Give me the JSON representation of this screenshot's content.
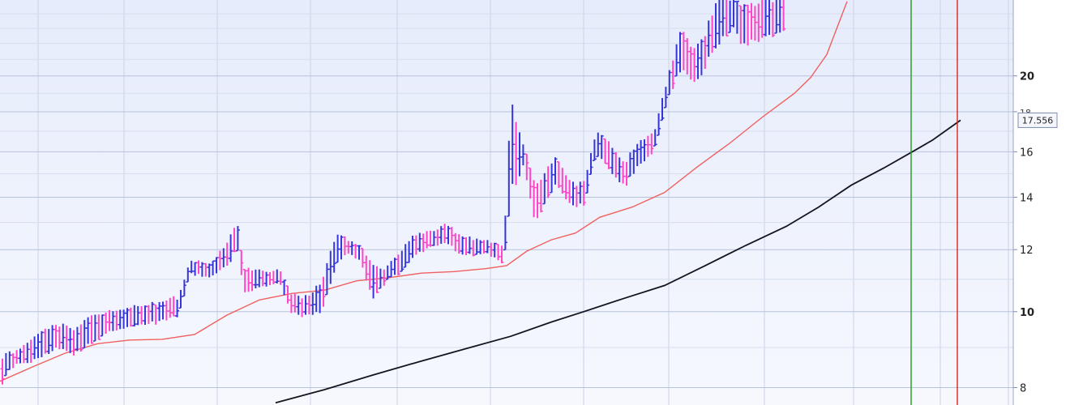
{
  "chart_data": {
    "type": "ohlc",
    "scale": "log",
    "ylim": [
      7.6,
      25.0
    ],
    "grid": true,
    "yticks": [
      {
        "value": 8,
        "label": "8",
        "major": false
      },
      {
        "value": 10,
        "label": "10",
        "major": true
      },
      {
        "value": 12,
        "label": "12",
        "major": false
      },
      {
        "value": 14,
        "label": "14",
        "major": false
      },
      {
        "value": 16,
        "label": "16",
        "major": false
      },
      {
        "value": 18,
        "label": "18",
        "major": false
      },
      {
        "value": 20,
        "label": "20",
        "major": true
      }
    ],
    "last_price_label": "17.556",
    "last_price_value": 17.556,
    "colors": {
      "up_bar": "#3535d8",
      "down_bar": "#ff44c8",
      "fast_ma": "#f06060",
      "slow_ma": "#151520",
      "marker_green": "#1f9a1f",
      "marker_red": "#e02020",
      "bg_top": "#e6ecfb",
      "bg_bottom": "#f6f8fe",
      "grid": "#c9d2e6"
    },
    "bar_anchors": [
      [
        0,
        8.1,
        8.7
      ],
      [
        20,
        8.6,
        8.9
      ],
      [
        45,
        8.7,
        9.3
      ],
      [
        66,
        9.0,
        9.6
      ],
      [
        90,
        8.9,
        9.5
      ],
      [
        110,
        9.1,
        9.8
      ],
      [
        135,
        9.5,
        10.0
      ],
      [
        165,
        9.6,
        10.1
      ],
      [
        190,
        9.7,
        10.2
      ],
      [
        220,
        9.9,
        10.4
      ],
      [
        235,
        11.2,
        11.6
      ],
      [
        260,
        11.1,
        11.5
      ],
      [
        285,
        11.6,
        12.4
      ],
      [
        292,
        12.4,
        13.2
      ],
      [
        300,
        10.6,
        11.3
      ],
      [
        330,
        10.8,
        11.2
      ],
      [
        345,
        10.9,
        11.3
      ],
      [
        360,
        10.0,
        10.5
      ],
      [
        380,
        9.9,
        10.4
      ],
      [
        398,
        10.1,
        10.9
      ],
      [
        415,
        11.6,
        12.6
      ],
      [
        430,
        11.9,
        12.3
      ],
      [
        445,
        11.6,
        12.1
      ],
      [
        460,
        10.3,
        11.3
      ],
      [
        475,
        10.9,
        11.3
      ],
      [
        490,
        11.2,
        11.8
      ],
      [
        510,
        11.8,
        12.5
      ],
      [
        530,
        12.1,
        12.6
      ],
      [
        550,
        12.3,
        12.9
      ],
      [
        570,
        11.8,
        12.4
      ],
      [
        600,
        11.9,
        12.3
      ],
      [
        622,
        11.5,
        12.1
      ],
      [
        630,
        14.3,
        18.2
      ],
      [
        645,
        15.5,
        16.4
      ],
      [
        660,
        13.0,
        14.3
      ],
      [
        685,
        14.6,
        15.7
      ],
      [
        705,
        13.7,
        14.5
      ],
      [
        722,
        13.7,
        14.6
      ],
      [
        735,
        16.0,
        16.9
      ],
      [
        750,
        15.3,
        16.4
      ],
      [
        770,
        14.5,
        15.4
      ],
      [
        790,
        15.5,
        16.5
      ],
      [
        808,
        16.2,
        17.0
      ],
      [
        825,
        18.8,
        20.0
      ],
      [
        840,
        20.6,
        22.8
      ],
      [
        855,
        19.8,
        21.6
      ],
      [
        870,
        20.5,
        22.4
      ],
      [
        885,
        22.3,
        24.9
      ],
      [
        905,
        23.0,
        25.0
      ],
      [
        920,
        22.0,
        24.3
      ],
      [
        940,
        22.5,
        24.8
      ],
      [
        965,
        22.8,
        25.0
      ]
    ],
    "fast_ma": [
      [
        0,
        8.15
      ],
      [
        40,
        8.5
      ],
      [
        80,
        8.85
      ],
      [
        120,
        9.1
      ],
      [
        160,
        9.2
      ],
      [
        200,
        9.22
      ],
      [
        240,
        9.35
      ],
      [
        280,
        9.9
      ],
      [
        320,
        10.35
      ],
      [
        360,
        10.55
      ],
      [
        400,
        10.65
      ],
      [
        440,
        10.95
      ],
      [
        480,
        11.05
      ],
      [
        520,
        11.2
      ],
      [
        560,
        11.25
      ],
      [
        600,
        11.35
      ],
      [
        625,
        11.45
      ],
      [
        650,
        11.95
      ],
      [
        680,
        12.35
      ],
      [
        710,
        12.6
      ],
      [
        740,
        13.2
      ],
      [
        780,
        13.6
      ],
      [
        820,
        14.2
      ],
      [
        860,
        15.3
      ],
      [
        900,
        16.4
      ],
      [
        940,
        17.7
      ],
      [
        980,
        19.0
      ],
      [
        1000,
        19.9
      ],
      [
        1020,
        21.3
      ],
      [
        1045,
        24.9
      ]
    ],
    "slow_ma": [
      [
        340,
        7.65
      ],
      [
        400,
        7.95
      ],
      [
        460,
        8.3
      ],
      [
        520,
        8.65
      ],
      [
        580,
        9.0
      ],
      [
        630,
        9.3
      ],
      [
        680,
        9.7
      ],
      [
        720,
        10.0
      ],
      [
        770,
        10.4
      ],
      [
        820,
        10.8
      ],
      [
        870,
        11.45
      ],
      [
        920,
        12.15
      ],
      [
        970,
        12.85
      ],
      [
        1010,
        13.6
      ],
      [
        1050,
        14.5
      ],
      [
        1090,
        15.25
      ],
      [
        1130,
        16.1
      ],
      [
        1150,
        16.55
      ],
      [
        1185,
        17.556
      ]
    ],
    "x_slots": 1250,
    "vertical_markers": [
      {
        "color_key": "marker_green",
        "slot": 1124
      },
      {
        "color_key": "marker_red",
        "slot": 1181
      }
    ],
    "vertical_grid_slots": [
      47,
      153,
      268,
      383,
      490,
      605,
      720,
      825,
      943,
      1053,
      1124,
      1160,
      1244
    ]
  }
}
